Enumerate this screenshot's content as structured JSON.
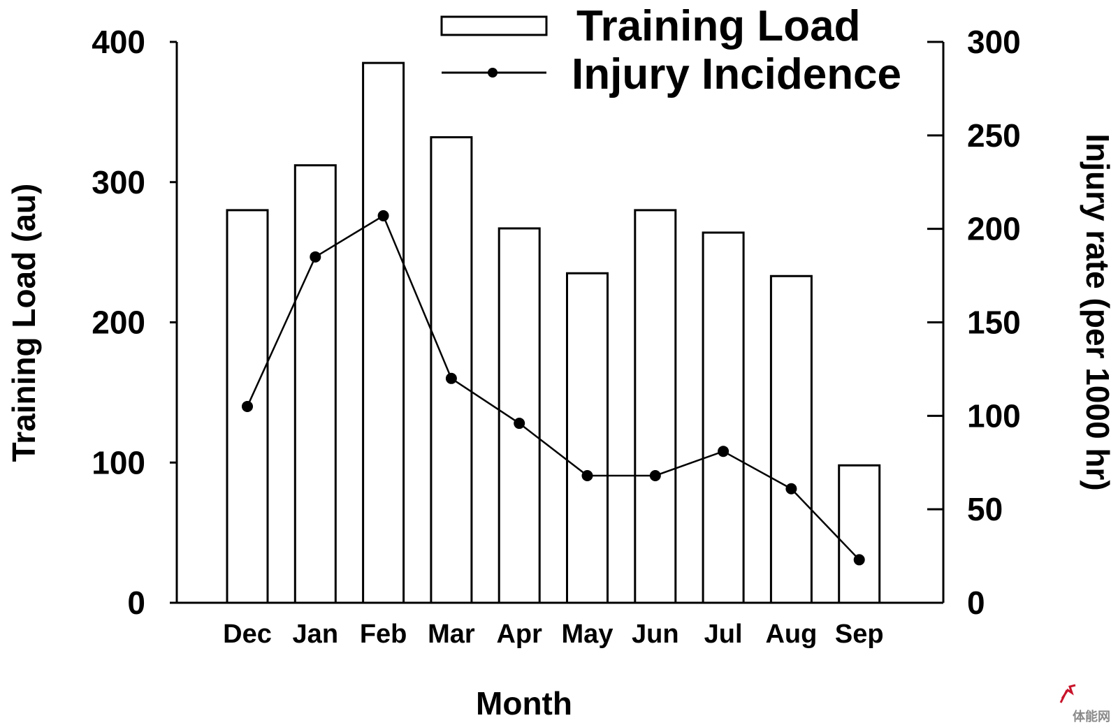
{
  "chart_data": {
    "type": "bar",
    "categories": [
      "Dec",
      "Jan",
      "Feb",
      "Mar",
      "Apr",
      "May",
      "Jun",
      "Jul",
      "Aug",
      "Sep"
    ],
    "series": [
      {
        "name": "Training Load",
        "type": "bar",
        "axis": "left",
        "values": [
          280,
          312,
          385,
          332,
          267,
          235,
          280,
          264,
          233,
          98
        ]
      },
      {
        "name": "Injury Incidence",
        "type": "line",
        "axis": "right",
        "marker": "circle",
        "values": [
          105,
          185,
          207,
          120,
          96,
          68,
          68,
          81,
          61,
          23
        ]
      }
    ],
    "title": "",
    "xlabel": "Month",
    "ylabel": "Training Load (au)",
    "y2label": "Injury rate (per 1000 hr)",
    "ylim": [
      0,
      400
    ],
    "y2lim": [
      0,
      300
    ],
    "yticks": [
      "0",
      "100",
      "200",
      "300",
      "400"
    ],
    "y2ticks": [
      "0",
      "50",
      "100",
      "150",
      "200",
      "250",
      "300"
    ],
    "grid": false,
    "legend": {
      "position": "top-right",
      "entries": [
        "Training Load",
        "Injury Incidence"
      ]
    },
    "colors": {
      "bar_fill": "#ffffff",
      "bar_stroke": "#000000",
      "line": "#000000",
      "axis": "#000000"
    }
  },
  "watermark": {
    "text": "体能网"
  }
}
